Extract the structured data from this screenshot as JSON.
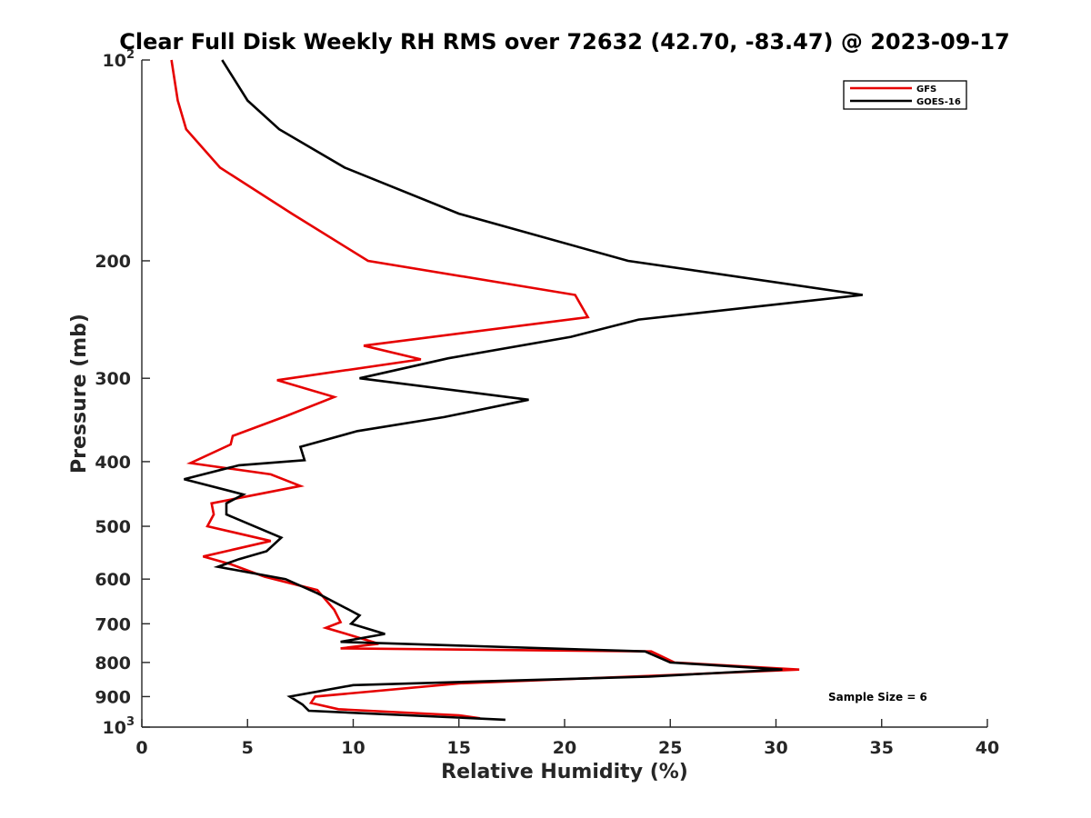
{
  "chart_data": {
    "type": "line",
    "title": "Clear Full Disk Weekly RH RMS over 72632 (42.70, -83.47) @ 2023-09-17",
    "xlabel": "Relative Humidity (%)",
    "ylabel": "Pressure (mb)",
    "xlim": [
      0,
      40
    ],
    "ylim": [
      100,
      1000
    ],
    "y_scale": "log",
    "y_reversed": true,
    "grid": false,
    "legend_position": "top-right",
    "x_ticks": [
      "0",
      "5",
      "10",
      "15",
      "20",
      "25",
      "30",
      "35",
      "40"
    ],
    "y_ticks": [
      {
        "value": 100,
        "base": "10",
        "exp": "2"
      },
      {
        "value": 200,
        "label": "200"
      },
      {
        "value": 300,
        "label": "300"
      },
      {
        "value": 400,
        "label": "400"
      },
      {
        "value": 500,
        "label": "500"
      },
      {
        "value": 600,
        "label": "600"
      },
      {
        "value": 700,
        "label": "700"
      },
      {
        "value": 800,
        "label": "800"
      },
      {
        "value": 900,
        "label": "900"
      },
      {
        "value": 1000,
        "base": "10",
        "exp": "3"
      }
    ],
    "annotation": "Sample Size = 6",
    "series": [
      {
        "name": "GFS",
        "color": "#e60000",
        "points": [
          [
            1.4,
            100
          ],
          [
            1.7,
            115
          ],
          [
            2.1,
            127
          ],
          [
            3.7,
            145
          ],
          [
            7.1,
            170
          ],
          [
            10.7,
            200
          ],
          [
            20.5,
            225
          ],
          [
            21.1,
            243
          ],
          [
            10.5,
            268
          ],
          [
            13.2,
            281
          ],
          [
            6.4,
            302
          ],
          [
            9.1,
            320
          ],
          [
            6.8,
            342
          ],
          [
            4.3,
            366
          ],
          [
            4.2,
            377
          ],
          [
            2.3,
            402
          ],
          [
            6.1,
            418
          ],
          [
            7.5,
            435
          ],
          [
            3.3,
            462
          ],
          [
            3.4,
            480
          ],
          [
            3.1,
            500
          ],
          [
            6.1,
            526
          ],
          [
            2.9,
            555
          ],
          [
            4.2,
            570
          ],
          [
            5.8,
            595
          ],
          [
            8.3,
            623
          ],
          [
            9.1,
            667
          ],
          [
            9.4,
            696
          ],
          [
            8.7,
            710
          ],
          [
            10.0,
            730
          ],
          [
            11.2,
            750
          ],
          [
            9.4,
            762
          ],
          [
            24.1,
            770
          ],
          [
            25.2,
            800
          ],
          [
            31.1,
            820
          ],
          [
            24.0,
            838
          ],
          [
            15.0,
            860
          ],
          [
            8.2,
            900
          ],
          [
            8.0,
            920
          ],
          [
            9.3,
            940
          ],
          [
            15.0,
            960
          ],
          [
            16.0,
            970
          ]
        ]
      },
      {
        "name": "GOES-16",
        "color": "#000000",
        "points": [
          [
            3.8,
            100
          ],
          [
            5.0,
            115
          ],
          [
            6.5,
            127
          ],
          [
            9.6,
            145
          ],
          [
            15.0,
            170
          ],
          [
            23.0,
            200
          ],
          [
            34.1,
            225
          ],
          [
            23.5,
            245
          ],
          [
            20.3,
            260
          ],
          [
            14.5,
            280
          ],
          [
            10.3,
            300
          ],
          [
            18.3,
            323
          ],
          [
            14.3,
            343
          ],
          [
            10.2,
            360
          ],
          [
            7.5,
            380
          ],
          [
            7.7,
            398
          ],
          [
            4.6,
            405
          ],
          [
            2.0,
            425
          ],
          [
            4.8,
            448
          ],
          [
            4.0,
            462
          ],
          [
            4.0,
            480
          ],
          [
            6.6,
            520
          ],
          [
            5.9,
            545
          ],
          [
            4.6,
            560
          ],
          [
            3.6,
            575
          ],
          [
            6.8,
            600
          ],
          [
            8.3,
            630
          ],
          [
            9.8,
            667
          ],
          [
            10.3,
            680
          ],
          [
            9.9,
            700
          ],
          [
            11.5,
            725
          ],
          [
            9.4,
            745
          ],
          [
            23.8,
            770
          ],
          [
            25.0,
            800
          ],
          [
            30.3,
            820
          ],
          [
            24.0,
            840
          ],
          [
            10.0,
            865
          ],
          [
            7.0,
            900
          ],
          [
            7.6,
            925
          ],
          [
            7.9,
            945
          ],
          [
            17.2,
            975
          ]
        ]
      }
    ]
  }
}
